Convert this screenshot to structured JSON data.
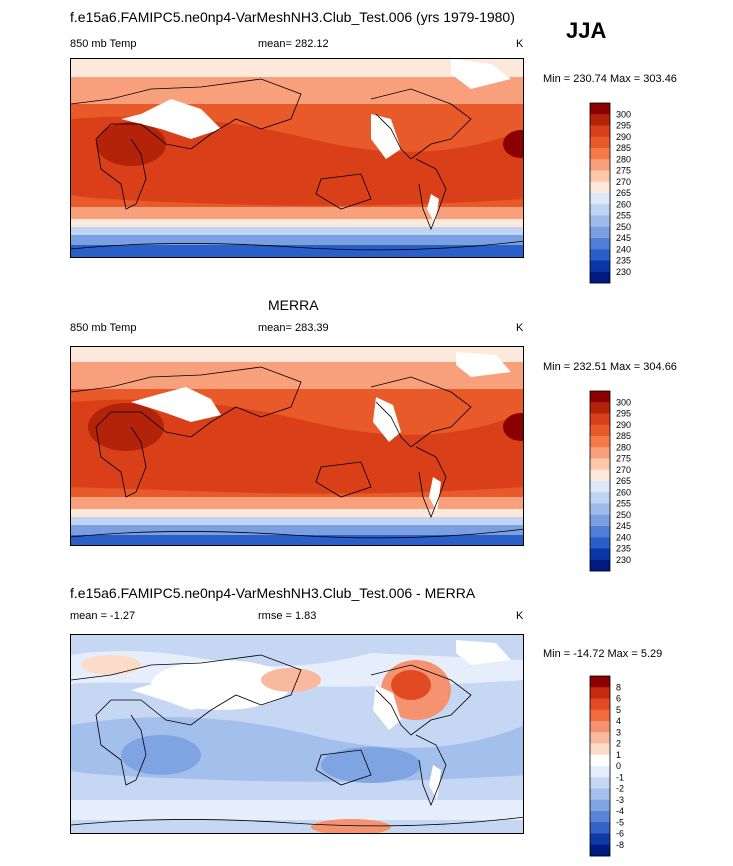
{
  "season": "JJA",
  "chart_data": [
    {
      "type": "heatmap",
      "panel": "model",
      "title": "f.e15a6.FAMIPC5.ne0np4-VarMeshNH3.Club_Test.006 (yrs 1979-1980)",
      "variable": "850 mb Temp",
      "mean_text": "mean= 282.12",
      "units": "K",
      "minmax_text": "Min = 230.74 Max = 303.46",
      "colorbar_levels": [
        "300",
        "295",
        "290",
        "285",
        "280",
        "275",
        "270",
        "265",
        "260",
        "255",
        "250",
        "245",
        "240",
        "235",
        "230"
      ]
    },
    {
      "type": "heatmap",
      "panel": "observations",
      "title": "MERRA",
      "variable": "850 mb Temp",
      "mean_text": "mean= 283.39",
      "units": "K",
      "minmax_text": "Min = 232.51 Max = 304.66",
      "colorbar_levels": [
        "300",
        "295",
        "290",
        "285",
        "280",
        "275",
        "270",
        "265",
        "260",
        "255",
        "250",
        "245",
        "240",
        "235",
        "230"
      ]
    },
    {
      "type": "heatmap",
      "panel": "difference",
      "title": "f.e15a6.FAMIPC5.ne0np4-VarMeshNH3.Club_Test.006 - MERRA",
      "mean_text": "mean =  -1.27",
      "rmse_text": "rmse =   1.83",
      "units": "K",
      "minmax_text": "Min = -14.72 Max =   5.29",
      "colorbar_levels": [
        "8",
        "6",
        "5",
        "4",
        "3",
        "2",
        "1",
        "0",
        "-1",
        "-2",
        "-3",
        "-4",
        "-5",
        "-6",
        "-8"
      ]
    }
  ],
  "colors": {
    "temp_scale": [
      "#8b0000",
      "#b3230a",
      "#d9401a",
      "#e95a2a",
      "#f47a4a",
      "#f8a07c",
      "#fcc8ac",
      "#fde9dc",
      "#dde8f8",
      "#bfd3f2",
      "#9ebce9",
      "#7aa0e1",
      "#517fd6",
      "#2a5fc9",
      "#0b36a8",
      "#001a80"
    ],
    "diff_scale": [
      "#8b0000",
      "#c42a10",
      "#e24b22",
      "#f06c3e",
      "#f59270",
      "#f9b99e",
      "#fcdcc8",
      "#ffffff",
      "#e6eefb",
      "#c5d7f3",
      "#a3bfec",
      "#7fa4e2",
      "#5a85d6",
      "#3262c5",
      "#0d3aa5",
      "#001a80"
    ]
  }
}
